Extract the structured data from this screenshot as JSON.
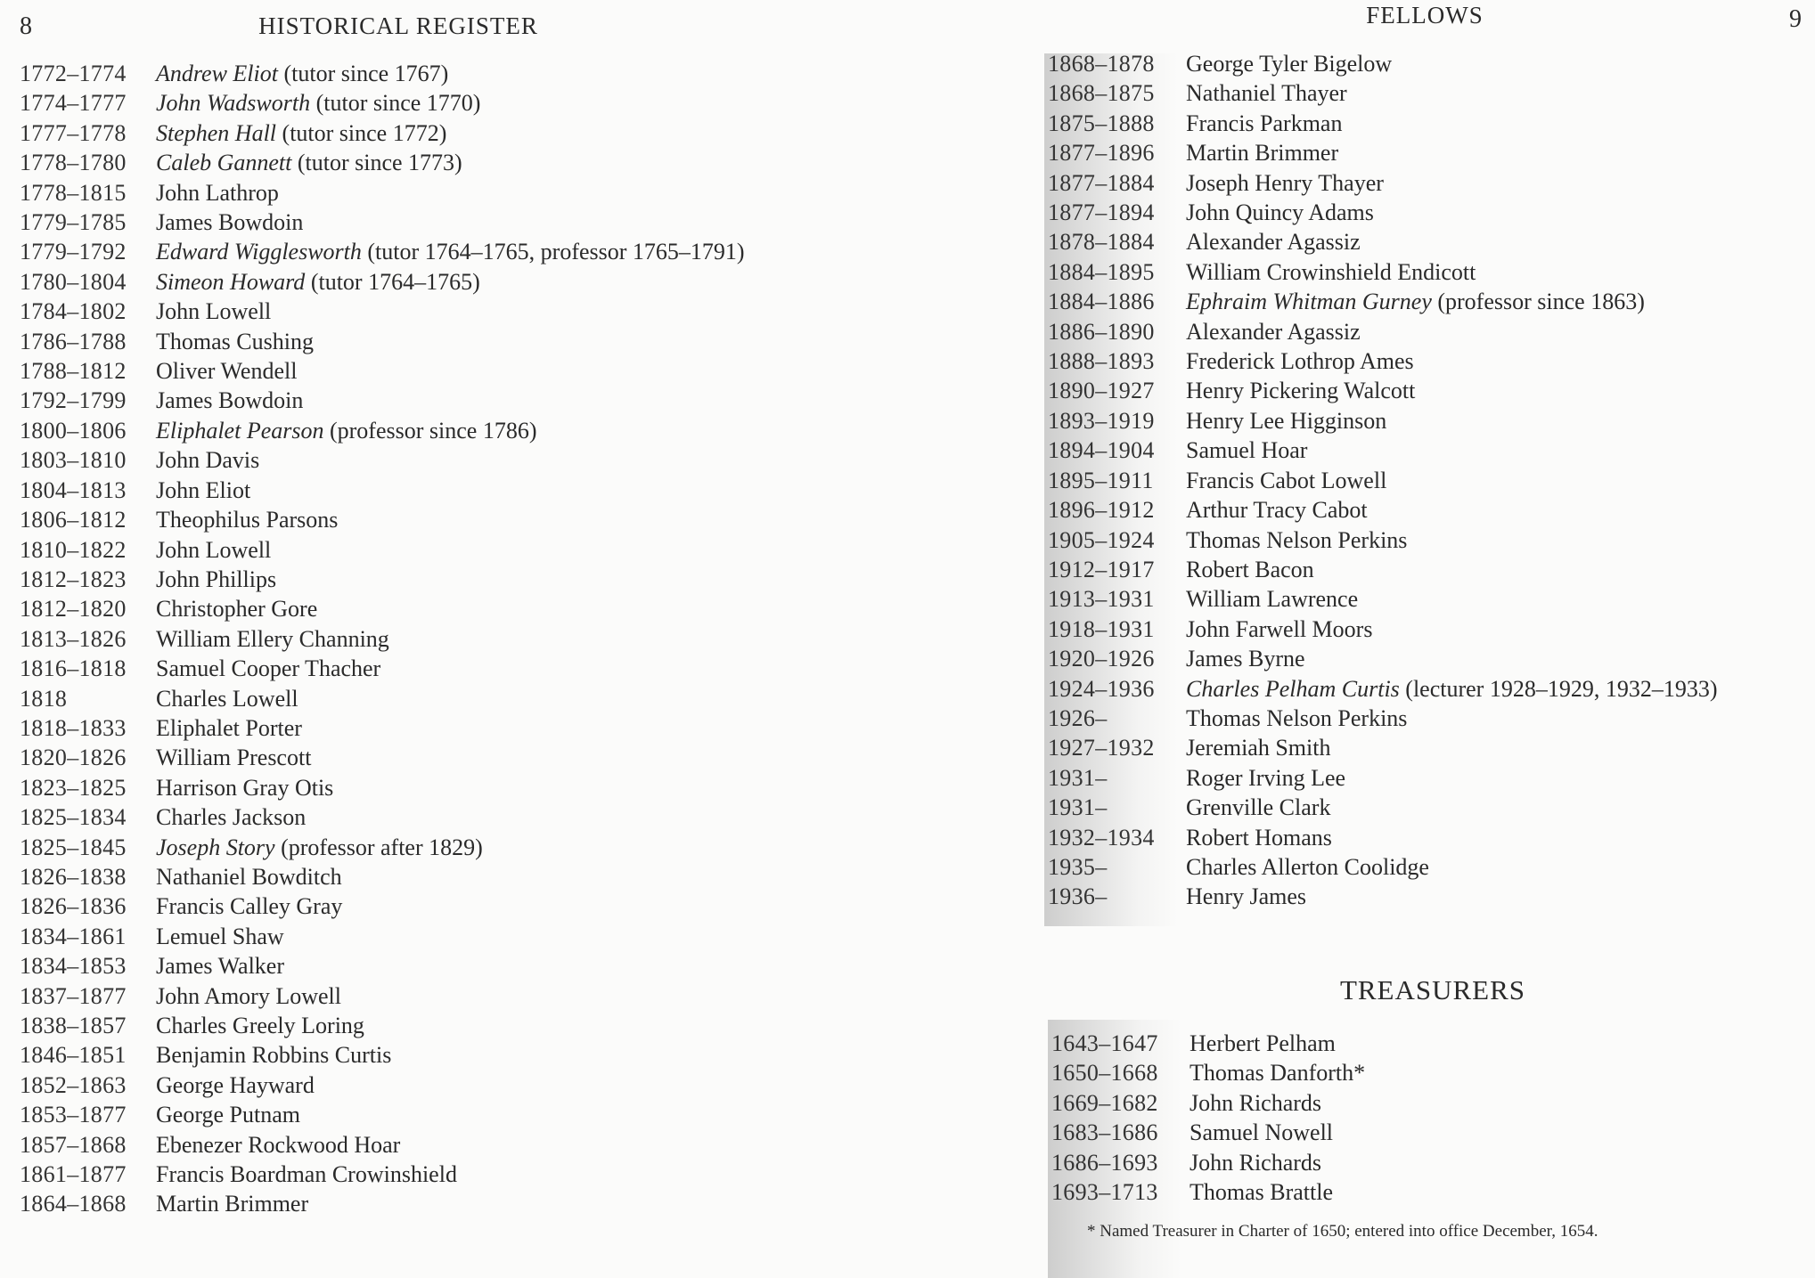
{
  "left_page": {
    "page_number": "8",
    "running_head": "HISTORICAL REGISTER",
    "entries": [
      {
        "years": "1772–1774",
        "name": "Andrew Eliot",
        "italic": true,
        "note": "(tutor since 1767)"
      },
      {
        "years": "1774–1777",
        "name": "John Wadsworth",
        "italic": true,
        "note": "(tutor since 1770)"
      },
      {
        "years": "1777–1778",
        "name": "Stephen Hall",
        "italic": true,
        "note": "(tutor since 1772)"
      },
      {
        "years": "1778–1780",
        "name": "Caleb Gannett",
        "italic": true,
        "note": "(tutor since 1773)"
      },
      {
        "years": "1778–1815",
        "name": "John Lathrop",
        "italic": false,
        "note": ""
      },
      {
        "years": "1779–1785",
        "name": "James Bowdoin",
        "italic": false,
        "note": ""
      },
      {
        "years": "1779–1792",
        "name": "Edward Wigglesworth",
        "italic": true,
        "note": "(tutor 1764–1765, professor 1765–1791)"
      },
      {
        "years": "1780–1804",
        "name": "Simeon Howard",
        "italic": true,
        "note": "(tutor 1764–1765)"
      },
      {
        "years": "1784–1802",
        "name": "John Lowell",
        "italic": false,
        "note": ""
      },
      {
        "years": "1786–1788",
        "name": "Thomas Cushing",
        "italic": false,
        "note": ""
      },
      {
        "years": "1788–1812",
        "name": "Oliver Wendell",
        "italic": false,
        "note": ""
      },
      {
        "years": "1792–1799",
        "name": "James Bowdoin",
        "italic": false,
        "note": ""
      },
      {
        "years": "1800–1806",
        "name": "Eliphalet Pearson",
        "italic": true,
        "note": "(professor since 1786)"
      },
      {
        "years": "1803–1810",
        "name": "John Davis",
        "italic": false,
        "note": ""
      },
      {
        "years": "1804–1813",
        "name": "John Eliot",
        "italic": false,
        "note": ""
      },
      {
        "years": "1806–1812",
        "name": "Theophilus Parsons",
        "italic": false,
        "note": ""
      },
      {
        "years": "1810–1822",
        "name": "John Lowell",
        "italic": false,
        "note": ""
      },
      {
        "years": "1812–1823",
        "name": "John Phillips",
        "italic": false,
        "note": ""
      },
      {
        "years": "1812–1820",
        "name": "Christopher Gore",
        "italic": false,
        "note": ""
      },
      {
        "years": "1813–1826",
        "name": "William Ellery Channing",
        "italic": false,
        "note": ""
      },
      {
        "years": "1816–1818",
        "name": "Samuel Cooper Thacher",
        "italic": false,
        "note": ""
      },
      {
        "years": "1818",
        "name": "Charles Lowell",
        "italic": false,
        "note": ""
      },
      {
        "years": "1818–1833",
        "name": "Eliphalet Porter",
        "italic": false,
        "note": ""
      },
      {
        "years": "1820–1826",
        "name": "William Prescott",
        "italic": false,
        "note": ""
      },
      {
        "years": "1823–1825",
        "name": "Harrison Gray Otis",
        "italic": false,
        "note": ""
      },
      {
        "years": "1825–1834",
        "name": "Charles Jackson",
        "italic": false,
        "note": ""
      },
      {
        "years": "1825–1845",
        "name": "Joseph Story",
        "italic": true,
        "note": "(professor after 1829)"
      },
      {
        "years": "1826–1838",
        "name": "Nathaniel Bowditch",
        "italic": false,
        "note": ""
      },
      {
        "years": "1826–1836",
        "name": "Francis Calley Gray",
        "italic": false,
        "note": ""
      },
      {
        "years": "1834–1861",
        "name": "Lemuel Shaw",
        "italic": false,
        "note": ""
      },
      {
        "years": "1834–1853",
        "name": "James Walker",
        "italic": false,
        "note": ""
      },
      {
        "years": "1837–1877",
        "name": "John Amory Lowell",
        "italic": false,
        "note": ""
      },
      {
        "years": "1838–1857",
        "name": "Charles Greely Loring",
        "italic": false,
        "note": ""
      },
      {
        "years": "1846–1851",
        "name": "Benjamin Robbins Curtis",
        "italic": false,
        "note": ""
      },
      {
        "years": "1852–1863",
        "name": "George Hayward",
        "italic": false,
        "note": ""
      },
      {
        "years": "1853–1877",
        "name": "George Putnam",
        "italic": false,
        "note": ""
      },
      {
        "years": "1857–1868",
        "name": "Ebenezer Rockwood Hoar",
        "italic": false,
        "note": ""
      },
      {
        "years": "1861–1877",
        "name": "Francis Boardman Crowinshield",
        "italic": false,
        "note": ""
      },
      {
        "years": "1864–1868",
        "name": "Martin Brimmer",
        "italic": false,
        "note": ""
      }
    ]
  },
  "right_page": {
    "page_number": "9",
    "running_head": "FELLOWS",
    "fellows": [
      {
        "years": "1868–1878",
        "name": "George Tyler Bigelow",
        "italic": false,
        "note": ""
      },
      {
        "years": "1868–1875",
        "name": "Nathaniel Thayer",
        "italic": false,
        "note": ""
      },
      {
        "years": "1875–1888",
        "name": "Francis Parkman",
        "italic": false,
        "note": ""
      },
      {
        "years": "1877–1896",
        "name": "Martin Brimmer",
        "italic": false,
        "note": ""
      },
      {
        "years": "1877–1884",
        "name": "Joseph Henry Thayer",
        "italic": false,
        "note": ""
      },
      {
        "years": "1877–1894",
        "name": "John Quincy Adams",
        "italic": false,
        "note": ""
      },
      {
        "years": "1878–1884",
        "name": "Alexander Agassiz",
        "italic": false,
        "note": ""
      },
      {
        "years": "1884–1895",
        "name": "William Crowinshield Endicott",
        "italic": false,
        "note": ""
      },
      {
        "years": "1884–1886",
        "name": "Ephraim Whitman Gurney",
        "italic": true,
        "note": "(professor since 1863)"
      },
      {
        "years": "1886–1890",
        "name": "Alexander Agassiz",
        "italic": false,
        "note": ""
      },
      {
        "years": "1888–1893",
        "name": "Frederick Lothrop Ames",
        "italic": false,
        "note": ""
      },
      {
        "years": "1890–1927",
        "name": "Henry Pickering Walcott",
        "italic": false,
        "note": ""
      },
      {
        "years": "1893–1919",
        "name": "Henry Lee Higginson",
        "italic": false,
        "note": ""
      },
      {
        "years": "1894–1904",
        "name": "Samuel Hoar",
        "italic": false,
        "note": ""
      },
      {
        "years": "1895–1911",
        "name": "Francis Cabot Lowell",
        "italic": false,
        "note": ""
      },
      {
        "years": "1896–1912",
        "name": "Arthur Tracy Cabot",
        "italic": false,
        "note": ""
      },
      {
        "years": "1905–1924",
        "name": "Thomas Nelson Perkins",
        "italic": false,
        "note": ""
      },
      {
        "years": "1912–1917",
        "name": "Robert Bacon",
        "italic": false,
        "note": ""
      },
      {
        "years": "1913–1931",
        "name": "William Lawrence",
        "italic": false,
        "note": ""
      },
      {
        "years": "1918–1931",
        "name": "John Farwell Moors",
        "italic": false,
        "note": ""
      },
      {
        "years": "1920–1926",
        "name": "James Byrne",
        "italic": false,
        "note": ""
      },
      {
        "years": "1924–1936",
        "name": "Charles Pelham Curtis",
        "italic": true,
        "note": "(lecturer 1928–1929, 1932–1933)"
      },
      {
        "years": "1926–",
        "name": "Thomas Nelson Perkins",
        "italic": false,
        "note": ""
      },
      {
        "years": "1927–1932",
        "name": "Jeremiah Smith",
        "italic": false,
        "note": ""
      },
      {
        "years": "1931–",
        "name": "Roger Irving Lee",
        "italic": false,
        "note": ""
      },
      {
        "years": "1931–",
        "name": "Grenville Clark",
        "italic": false,
        "note": ""
      },
      {
        "years": "1932–1934",
        "name": "Robert Homans",
        "italic": false,
        "note": ""
      },
      {
        "years": "1935–",
        "name": "Charles Allerton Coolidge",
        "italic": false,
        "note": ""
      },
      {
        "years": "1936–",
        "name": "Henry James",
        "italic": false,
        "note": ""
      }
    ],
    "treasurers_heading": "TREASURERS",
    "treasurers": [
      {
        "years": "1643–1647",
        "name": "Herbert Pelham",
        "italic": false,
        "note": ""
      },
      {
        "years": "1650–1668",
        "name": "Thomas Danforth*",
        "italic": false,
        "note": ""
      },
      {
        "years": "1669–1682",
        "name": "John Richards",
        "italic": false,
        "note": ""
      },
      {
        "years": "1683–1686",
        "name": "Samuel Nowell",
        "italic": false,
        "note": ""
      },
      {
        "years": "1686–1693",
        "name": "John Richards",
        "italic": false,
        "note": ""
      },
      {
        "years": "1693–1713",
        "name": "Thomas Brattle",
        "italic": false,
        "note": ""
      }
    ],
    "footnote": "* Named Treasurer in Charter of 1650; entered into office December, 1654."
  }
}
